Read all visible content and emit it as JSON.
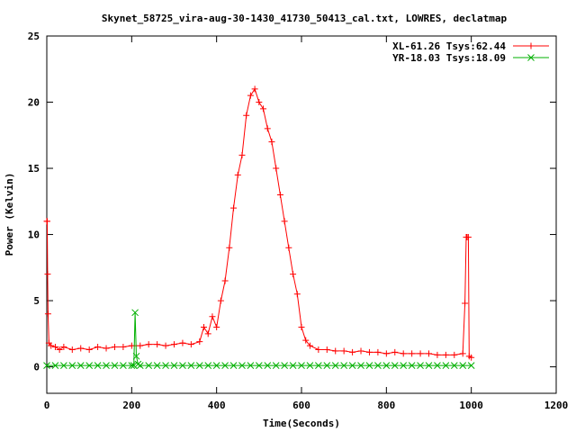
{
  "chart_data": {
    "type": "line",
    "title": "Skynet_58725_vira-aug-30-1430_41730_50413_cal.txt, LOWRES, declatmap",
    "xlabel": "Time(Seconds)",
    "ylabel": "Power (Kelvin)",
    "xlim": [
      0,
      1200
    ],
    "ylim": [
      -2,
      25
    ],
    "xticks": [
      0,
      200,
      400,
      600,
      800,
      1000,
      1200
    ],
    "yticks": [
      0,
      5,
      10,
      15,
      20,
      25
    ],
    "grid": false,
    "legend_position": "top-right",
    "series": [
      {
        "name": "XL-61.26 Tsys:62.44",
        "color": "#ff0000",
        "marker": "plus",
        "x": [
          0,
          1,
          2,
          3,
          5,
          10,
          20,
          30,
          40,
          60,
          80,
          100,
          120,
          140,
          160,
          180,
          200,
          220,
          240,
          260,
          280,
          300,
          320,
          340,
          360,
          370,
          380,
          390,
          400,
          410,
          420,
          430,
          440,
          450,
          460,
          470,
          480,
          490,
          500,
          510,
          520,
          530,
          540,
          550,
          560,
          570,
          580,
          590,
          600,
          610,
          620,
          640,
          660,
          680,
          700,
          720,
          740,
          760,
          780,
          800,
          820,
          840,
          860,
          880,
          900,
          920,
          940,
          960,
          980,
          985,
          988,
          990,
          993,
          995,
          1000
        ],
        "y": [
          11.0,
          11.0,
          7.0,
          4.0,
          1.8,
          1.6,
          1.5,
          1.3,
          1.5,
          1.3,
          1.4,
          1.3,
          1.5,
          1.4,
          1.5,
          1.5,
          1.6,
          1.6,
          1.7,
          1.7,
          1.6,
          1.7,
          1.8,
          1.7,
          1.9,
          3.0,
          2.5,
          3.8,
          3.0,
          5.0,
          6.5,
          9.0,
          12.0,
          14.5,
          16.0,
          19.0,
          20.5,
          21.0,
          20.0,
          19.5,
          18.0,
          17.0,
          15.0,
          13.0,
          11.0,
          9.0,
          7.0,
          5.5,
          3.0,
          2.0,
          1.6,
          1.3,
          1.3,
          1.2,
          1.2,
          1.1,
          1.2,
          1.1,
          1.1,
          1.0,
          1.1,
          1.0,
          1.0,
          1.0,
          1.0,
          0.9,
          0.9,
          0.9,
          1.0,
          4.8,
          9.8,
          9.8,
          9.8,
          0.8,
          0.7
        ]
      },
      {
        "name": "YR-18.03 Tsys:18.09",
        "color": "#00b000",
        "marker": "cross",
        "x": [
          0,
          20,
          40,
          60,
          80,
          100,
          120,
          140,
          160,
          180,
          200,
          205,
          208,
          211,
          215,
          220,
          240,
          260,
          280,
          300,
          320,
          340,
          360,
          380,
          400,
          420,
          440,
          460,
          480,
          500,
          520,
          540,
          560,
          580,
          600,
          620,
          640,
          660,
          680,
          700,
          720,
          740,
          760,
          780,
          800,
          820,
          840,
          860,
          880,
          900,
          920,
          940,
          960,
          980,
          1000
        ],
        "y": [
          0.1,
          0.1,
          0.1,
          0.1,
          0.1,
          0.1,
          0.1,
          0.1,
          0.1,
          0.1,
          0.1,
          0.1,
          4.1,
          0.8,
          0.2,
          0.1,
          0.1,
          0.1,
          0.1,
          0.1,
          0.1,
          0.1,
          0.1,
          0.1,
          0.1,
          0.1,
          0.1,
          0.1,
          0.1,
          0.1,
          0.1,
          0.1,
          0.1,
          0.1,
          0.1,
          0.1,
          0.1,
          0.1,
          0.1,
          0.1,
          0.1,
          0.1,
          0.1,
          0.1,
          0.1,
          0.1,
          0.1,
          0.1,
          0.1,
          0.1,
          0.1,
          0.1,
          0.1,
          0.1,
          0.1
        ]
      }
    ]
  }
}
